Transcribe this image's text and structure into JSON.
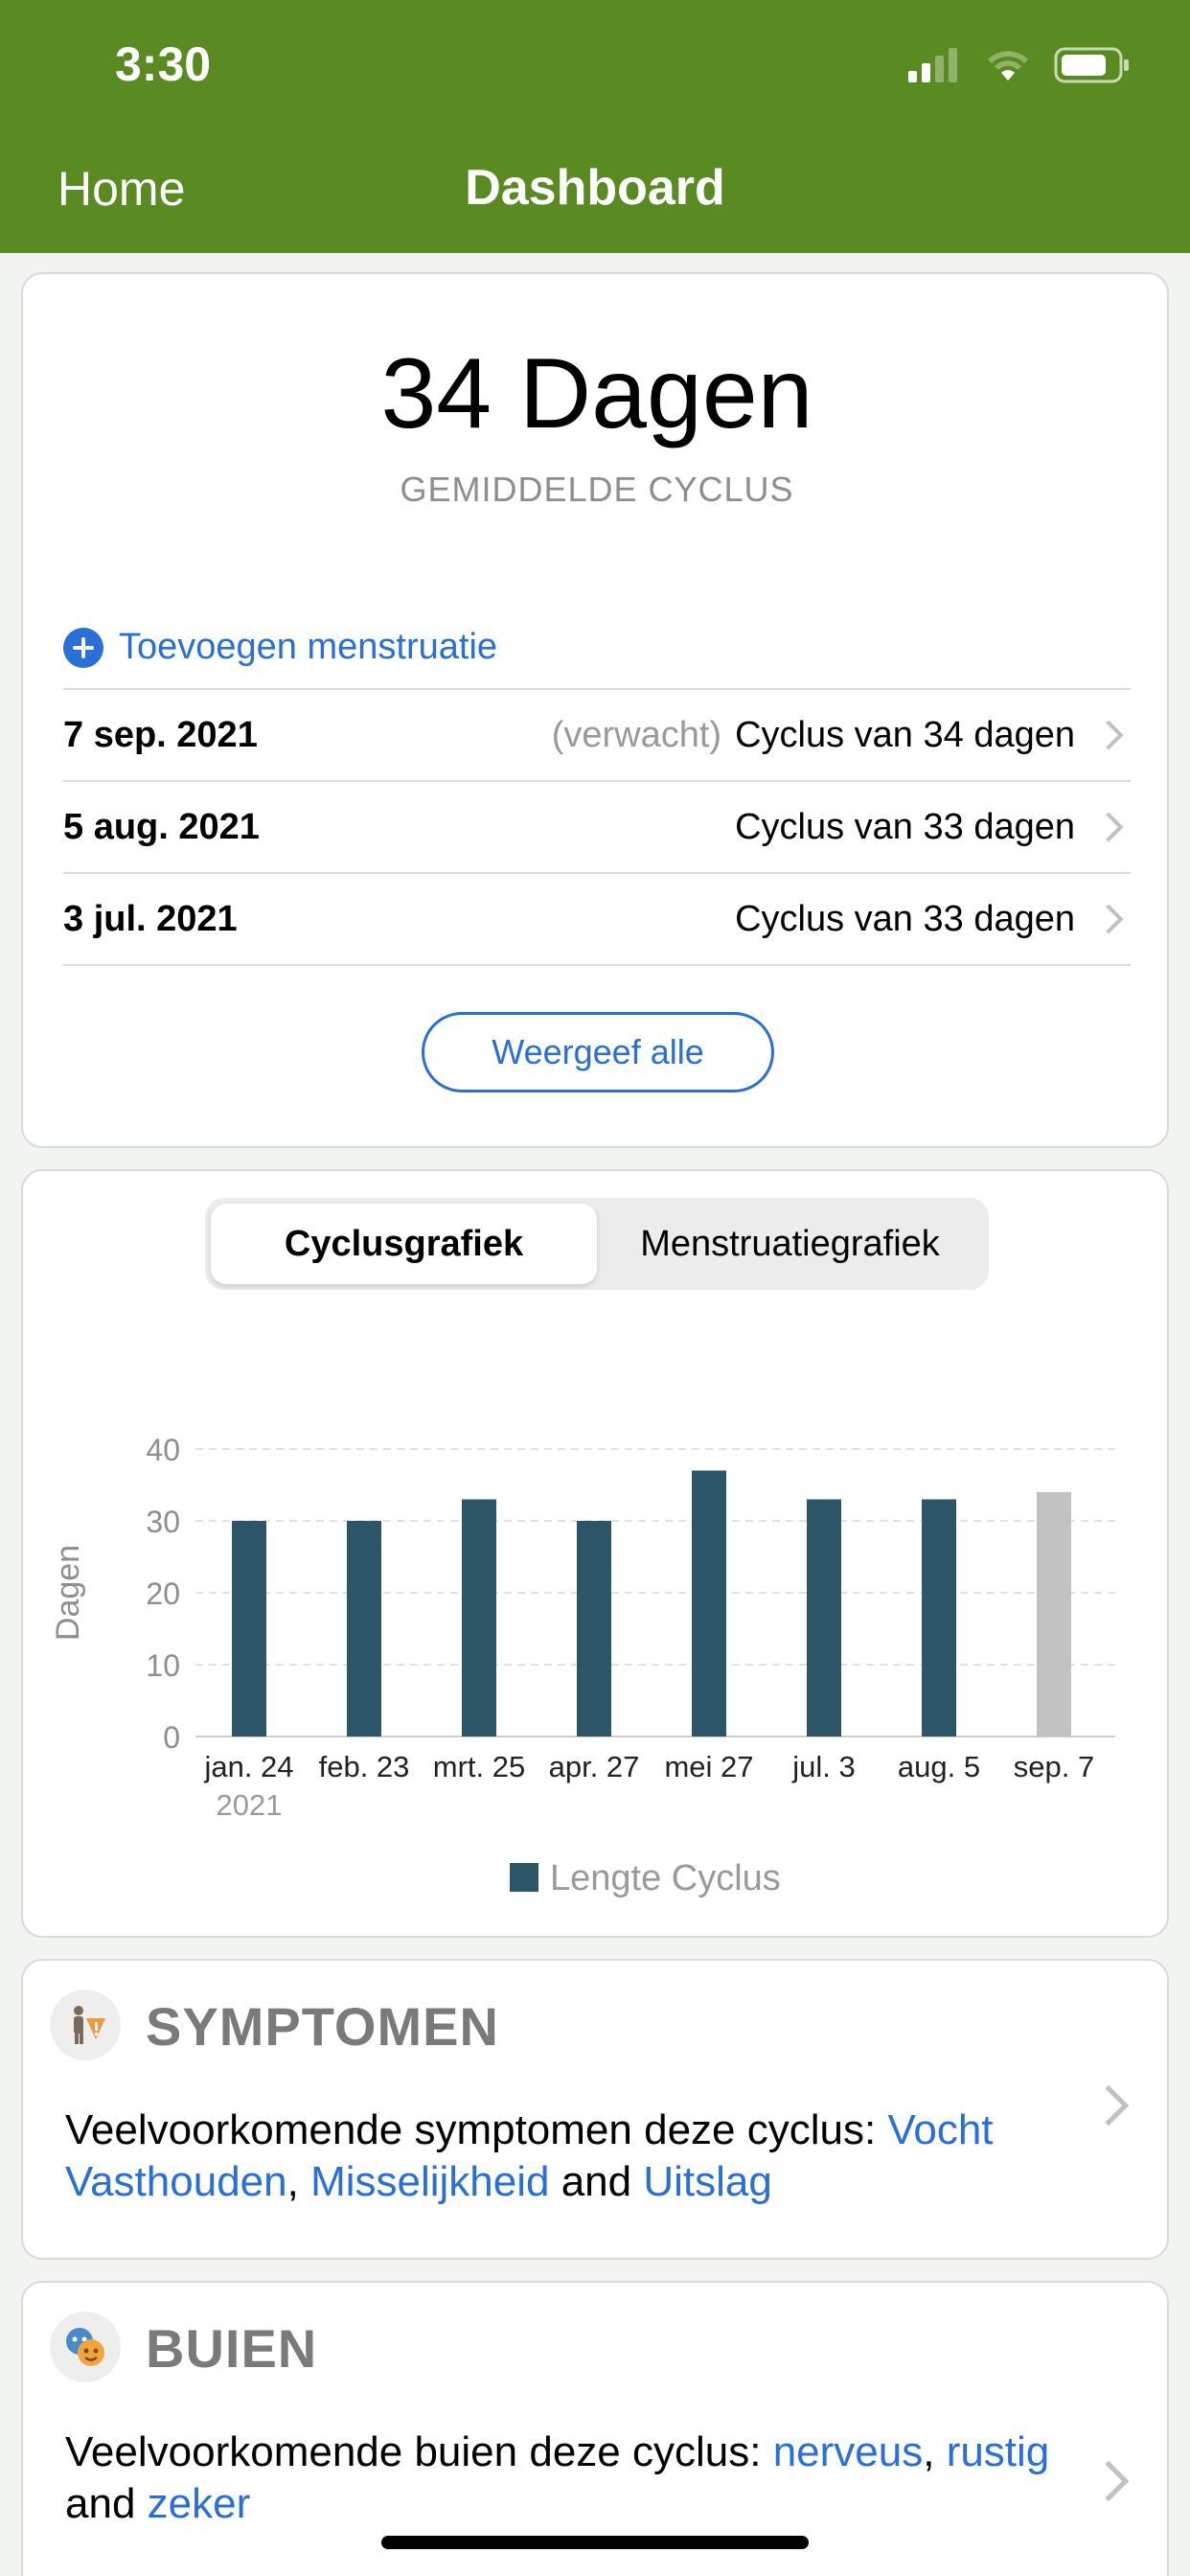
{
  "status_bar": {
    "time": "3:30"
  },
  "nav": {
    "back": "Home",
    "title": "Dashboard"
  },
  "summary": {
    "value": "34 Dagen",
    "label": "GEMIDDELDE CYCLUS"
  },
  "add_period": {
    "label": "Toevoegen menstruatie"
  },
  "cycles": [
    {
      "date": "7 sep. 2021",
      "note": "(verwacht)",
      "text": "Cyclus van 34 dagen"
    },
    {
      "date": "5 aug. 2021",
      "note": "",
      "text": "Cyclus van 33 dagen"
    },
    {
      "date": "3 jul. 2021",
      "note": "",
      "text": "Cyclus van 33 dagen"
    }
  ],
  "view_all": "Weergeef alle",
  "tabs": {
    "cycle": "Cyclusgrafiek",
    "period": "Menstruatiegrafiek"
  },
  "chart_data": {
    "type": "bar",
    "categories": [
      "jan. 24",
      "feb. 23",
      "mrt. 25",
      "apr. 27",
      "mei 27",
      "jul. 3",
      "aug. 5",
      "sep. 7"
    ],
    "year_label": "2021",
    "values": [
      30,
      30,
      33,
      30,
      37,
      33,
      33,
      34
    ],
    "highlight": [
      false,
      false,
      false,
      false,
      false,
      false,
      false,
      true
    ],
    "ylabel": "Dagen",
    "yticks": [
      0,
      10,
      20,
      30,
      40
    ],
    "ylim": [
      0,
      40
    ],
    "legend": "Lengte Cyclus",
    "bar_color": "#2c5668",
    "expected_color": "#c2c2c2",
    "grid": true,
    "legend_position": "bottom"
  },
  "symptoms": {
    "title": "SYMPTOMEN",
    "icon": "symptoms-icon",
    "prefix": "Veelvoorkomende symptomen deze cyclus: ",
    "items": [
      "Vocht Vasthouden",
      "Misselijkheid",
      "Uitslag"
    ],
    "sep": ", ",
    "and": " and "
  },
  "moods": {
    "title": "BUIEN",
    "icon": "moods-icon",
    "prefix": "Veelvoorkomende buien deze cyclus: ",
    "items": [
      "nerveus",
      "rustig",
      "zeker"
    ],
    "sep": ", ",
    "and": " and "
  },
  "colors": {
    "header": "#5a8a22",
    "accent": "#2a6fd8"
  }
}
